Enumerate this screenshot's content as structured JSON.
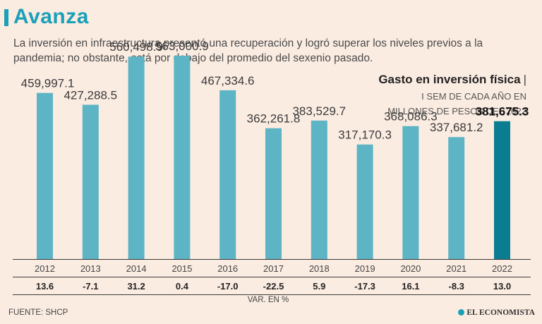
{
  "header": {
    "title": "Avanza",
    "subtitle": "La inversión en infraestructura presentó una recuperación y logró superar los niveles previos a la pandemia; no obstante, está por debajo del promedio del sexenio pasado."
  },
  "chart_heading": {
    "title": "Gasto en inversión física",
    "separator": "|",
    "line1": "I SEM DE CADA AÑO EN",
    "line2": "MILLONES DE PESOS DEL 2022"
  },
  "chart_data": {
    "type": "bar",
    "title": "Gasto en inversión física",
    "subtitle": "I SEM DE CADA AÑO EN MILLONES DE PESOS DEL 2022",
    "categories": [
      "2012",
      "2013",
      "2014",
      "2015",
      "2016",
      "2017",
      "2018",
      "2019",
      "2020",
      "2021",
      "2022"
    ],
    "values": [
      459997.1,
      427288.5,
      560498.9,
      563000.9,
      467334.6,
      362261.8,
      383529.7,
      317170.3,
      368086.3,
      337681.2,
      381675.3
    ],
    "value_labels": [
      "459,997.1",
      "427,288.5",
      "560,498.9",
      "563,000.9",
      "467,334.6",
      "362,261.8",
      "383,529.7",
      "317,170.3",
      "368,086.3",
      "337,681.2",
      "381,675.3"
    ],
    "variation": [
      "13.6",
      "-7.1",
      "31.2",
      "0.4",
      "-17.0",
      "-22.5",
      "5.9",
      "-17.3",
      "16.1",
      "-8.3",
      "13.0"
    ],
    "variation_label": "VAR. EN %",
    "highlight_index": 10,
    "colors": {
      "bar": "#5cb4c4",
      "highlight": "#0b7d90"
    },
    "ylim": [
      0,
      600000
    ],
    "grid": false
  },
  "footer": {
    "source": "FUENTE: SHCP",
    "brand": "EL ECONOMISTA"
  }
}
